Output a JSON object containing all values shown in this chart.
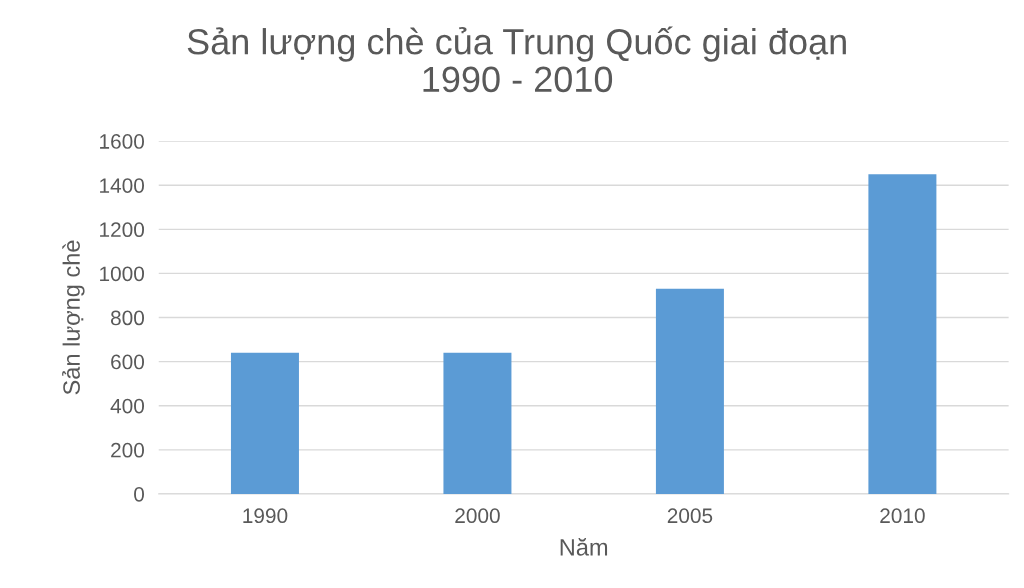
{
  "chart_data": {
    "type": "bar",
    "title": "Sản lượng chè của Trung Quốc giai đoạn\n1990 - 2010",
    "xlabel": "Năm",
    "ylabel": "Sản lượng chè",
    "categories": [
      "1990",
      "2000",
      "2005",
      "2010"
    ],
    "values": [
      640,
      640,
      930,
      1450
    ],
    "color": "#5b9bd5",
    "ylim": [
      0,
      1600
    ],
    "yticks": [
      0,
      200,
      400,
      600,
      800,
      1000,
      1200,
      1400,
      1600
    ],
    "grid": "y"
  }
}
